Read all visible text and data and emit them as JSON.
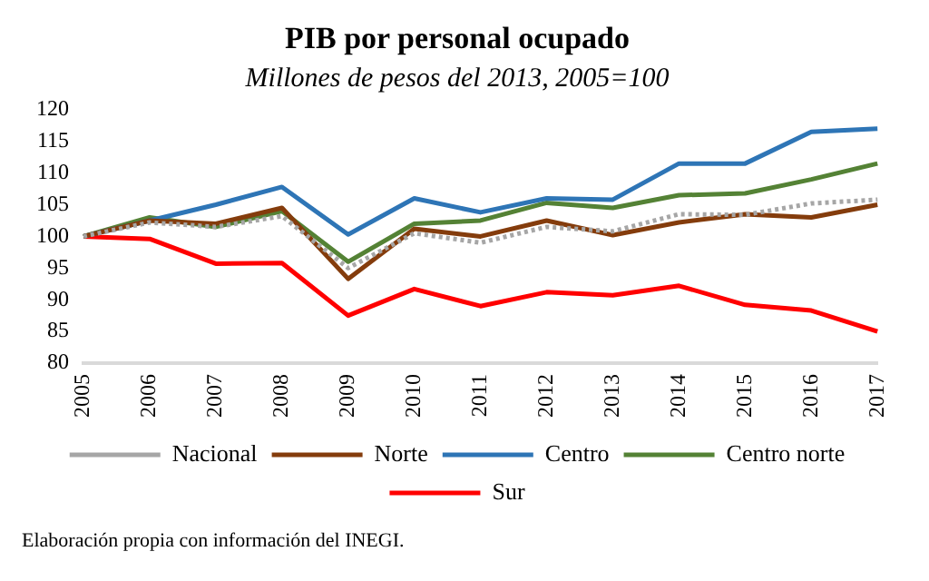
{
  "chart_data": {
    "type": "line",
    "title": "PIB por personal ocupado",
    "subtitle": "Millones de pesos del 2013, 2005=100",
    "categories": [
      "2005",
      "2006",
      "2007",
      "2008",
      "2009",
      "2010",
      "2011",
      "2012",
      "2013",
      "2014",
      "2015",
      "2016",
      "2017"
    ],
    "series": [
      {
        "name": "Nacional",
        "color": "#a6a6a6",
        "line_style": "dotted",
        "values": [
          100,
          102.2,
          101.5,
          103.2,
          95,
          100.5,
          99,
          101.5,
          100.8,
          103.5,
          103.4,
          105.2,
          105.8
        ]
      },
      {
        "name": "Norte",
        "color": "#843c0c",
        "values": [
          100,
          102.5,
          102,
          104.5,
          93.3,
          101.2,
          100,
          102.5,
          100.2,
          102.2,
          103.5,
          103,
          105
        ]
      },
      {
        "name": "Centro",
        "color": "#2e75b6",
        "values": [
          100,
          102.5,
          105,
          107.8,
          100.3,
          106,
          103.8,
          106,
          105.8,
          111.5,
          111.5,
          116.5,
          117
        ]
      },
      {
        "name": "Centro norte",
        "color": "#548235",
        "values": [
          100,
          103,
          101.5,
          104,
          96,
          102,
          102.5,
          105.3,
          104.5,
          106.5,
          106.8,
          109,
          111.5
        ]
      },
      {
        "name": "Sur",
        "color": "#ff0000",
        "values": [
          100,
          99.6,
          95.7,
          95.8,
          87.5,
          91.7,
          89,
          91.2,
          90.7,
          92.2,
          89.2,
          88.3,
          85
        ]
      }
    ],
    "ylim": [
      80,
      120
    ],
    "yticks": [
      80,
      85,
      90,
      95,
      100,
      105,
      110,
      115,
      120
    ],
    "grid": false,
    "legend": "bottom",
    "marker": "none",
    "line_style": "solid",
    "annotations": [
      "Elaboración propia con información del INEGI."
    ]
  }
}
